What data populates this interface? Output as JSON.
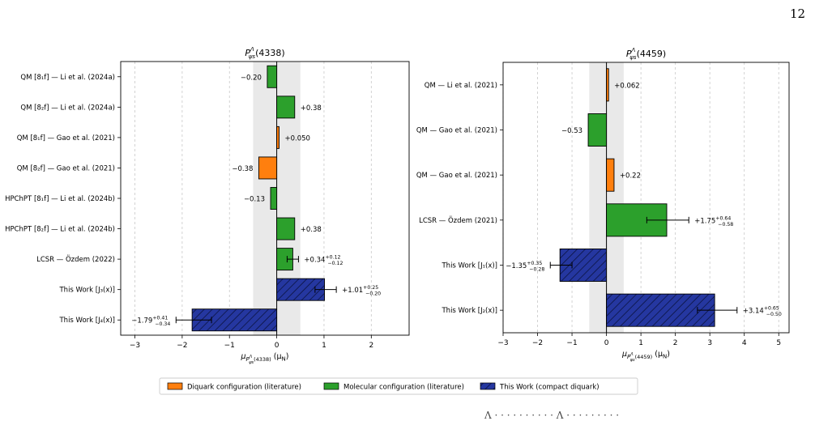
{
  "page": {
    "page_number": "12",
    "bottom_cut_text": "Λ · · · · · · · · · · Λ · · · · · · · · ·"
  },
  "colors": {
    "diquark": "#ff7f0e",
    "molecular": "#2ca02c",
    "this_work": "#2537a0",
    "band": "#e9e9e9"
  },
  "legend": {
    "items": [
      {
        "label": "Diquark configuration (literature)",
        "kind": "diquark"
      },
      {
        "label": "Molecular configuration (literature)",
        "kind": "molecular"
      },
      {
        "label": "This Work (compact diquark)",
        "kind": "this_work"
      }
    ]
  },
  "chart_data": [
    {
      "type": "bar",
      "orientation": "horizontal",
      "title": "P_ψs^Λ(4338)",
      "title_main": "P",
      "title_sup": "Λ",
      "title_sub": "ψs",
      "title_arg": "(4338)",
      "xlabel_prefix": "μ",
      "xlabel_sub": "P",
      "xlabel_sub_sub": "ψs",
      "xlabel_sub_sup": "Λ",
      "xlabel_sub_arg": "(4338)",
      "xlabel_suffix": "(μ",
      "xlabel_suffix_sub": "N",
      "xlabel_close": ")",
      "xlim": [
        -3.3,
        2.8
      ],
      "xticks": [
        -3,
        -2,
        -1,
        0,
        1,
        2
      ],
      "xtick_labels": [
        "−3",
        "−2",
        "−1",
        "0",
        "1",
        "2"
      ],
      "band": [
        -0.5,
        0.5
      ],
      "grid": "x-dashed",
      "categories": [
        "QM [8₁f] — Li et al. (2024a)",
        "QM [8₂f] — Li et al. (2024a)",
        "QM [8₁f] — Gao et al. (2021)",
        "QM [8₂f] — Gao et al. (2021)",
        "HPChPT [8₁f] — Li et al. (2024b)",
        "HPChPT [8₂f] — Li et al. (2024b)",
        "LCSR — Özdem (2022)",
        "This Work [J₃(x)]",
        "This Work [J₄(x)]"
      ],
      "values": [
        -0.2,
        0.38,
        0.05,
        -0.38,
        -0.13,
        0.38,
        0.34,
        1.01,
        -1.79
      ],
      "kinds": [
        "molecular",
        "molecular",
        "diquark",
        "diquark",
        "molecular",
        "molecular",
        "molecular",
        "this_work",
        "this_work"
      ],
      "err_plus": [
        null,
        null,
        null,
        null,
        null,
        null,
        0.12,
        0.25,
        0.41
      ],
      "err_minus": [
        null,
        null,
        null,
        null,
        null,
        null,
        0.12,
        0.2,
        0.34
      ],
      "value_labels": [
        "−0.20",
        "+0.38",
        "+0.050",
        "−0.38",
        "−0.13",
        "+0.38",
        "+0.34",
        "+1.01",
        "−1.79"
      ],
      "err_plus_labels": [
        "",
        "",
        "",
        "",
        "",
        "",
        "+0.12",
        "+0.25",
        "+0.41"
      ],
      "err_minus_labels": [
        "",
        "",
        "",
        "",
        "",
        "",
        "−0.12",
        "−0.20",
        "−0.34"
      ]
    },
    {
      "type": "bar",
      "orientation": "horizontal",
      "title": "P_ψs^Λ(4459)",
      "title_main": "P",
      "title_sup": "Λ",
      "title_sub": "ψs",
      "title_arg": "(4459)",
      "xlabel_prefix": "μ",
      "xlabel_sub": "P",
      "xlabel_sub_sub": "ψs",
      "xlabel_sub_sup": "Λ",
      "xlabel_sub_arg": "(4459)",
      "xlabel_suffix": "(μ",
      "xlabel_suffix_sub": "N",
      "xlabel_close": ")",
      "xlim": [
        -3,
        5.3
      ],
      "xticks": [
        -3,
        -2,
        -1,
        0,
        1,
        2,
        3,
        4,
        5
      ],
      "xtick_labels": [
        "−3",
        "−2",
        "−1",
        "0",
        "1",
        "2",
        "3",
        "4",
        "5"
      ],
      "band": [
        -0.5,
        0.5
      ],
      "grid": "x-dashed",
      "categories": [
        "QM — Li et al. (2021)",
        "QM — Gao et al. (2021)",
        "QM — Gao et al. (2021)",
        "LCSR — Özdem (2021)",
        "This Work [J₁(x)]",
        "This Work [J₂(x)]"
      ],
      "values": [
        0.062,
        -0.53,
        0.22,
        1.75,
        -1.35,
        3.14
      ],
      "kinds": [
        "diquark",
        "molecular",
        "diquark",
        "molecular",
        "this_work",
        "this_work"
      ],
      "err_plus": [
        null,
        null,
        null,
        0.64,
        0.35,
        0.65
      ],
      "err_minus": [
        null,
        null,
        null,
        0.58,
        0.28,
        0.5
      ],
      "value_labels": [
        "+0.062",
        "−0.53",
        "+0.22",
        "+1.75",
        "−1.35",
        "+3.14"
      ],
      "err_plus_labels": [
        "",
        "",
        "",
        "+0.64",
        "+0.35",
        "+0.65"
      ],
      "err_minus_labels": [
        "",
        "",
        "",
        "−0.58",
        "−0.28",
        "−0.50"
      ]
    }
  ]
}
